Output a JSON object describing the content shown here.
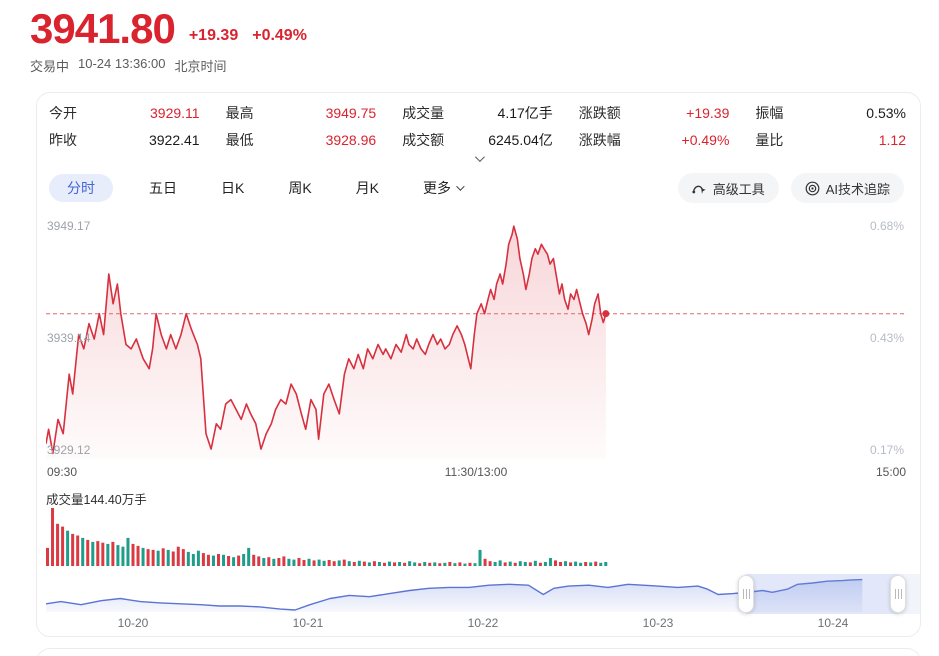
{
  "colors": {
    "up": "#d9232e",
    "down": "#1f9d8b",
    "accent_blue": "#4566d6",
    "line_red": "#d7303f",
    "nav_blue": "#5b74d4"
  },
  "header": {
    "price": "3941.80",
    "change": "+19.39",
    "change_pct": "+0.49%",
    "status": "交易中",
    "datetime": "10-24 13:36:00",
    "timezone": "北京时间"
  },
  "stats": {
    "rows": [
      [
        {
          "label": "今开",
          "value": "3929.11",
          "tone": "up"
        },
        {
          "label": "最高",
          "value": "3949.75",
          "tone": "up"
        },
        {
          "label": "成交量",
          "value": "4.17亿手",
          "tone": "normal"
        },
        {
          "label": "涨跌额",
          "value": "+19.39",
          "tone": "up"
        },
        {
          "label": "振幅",
          "value": "0.53%",
          "tone": "normal"
        }
      ],
      [
        {
          "label": "昨收",
          "value": "3922.41",
          "tone": "normal"
        },
        {
          "label": "最低",
          "value": "3928.96",
          "tone": "up"
        },
        {
          "label": "成交额",
          "value": "6245.04亿",
          "tone": "normal"
        },
        {
          "label": "涨跌幅",
          "value": "+0.49%",
          "tone": "up"
        },
        {
          "label": "量比",
          "value": "1.12",
          "tone": "up"
        }
      ]
    ]
  },
  "tabs": {
    "items": [
      "分时",
      "五日",
      "日K",
      "周K",
      "月K"
    ],
    "active_index": 0,
    "more": "更多"
  },
  "actions": {
    "advanced": "高级工具",
    "ai": "AI技术追踪"
  },
  "chart_data": [
    {
      "type": "line",
      "name": "intraday-price",
      "left_ticks": [
        "3949.17",
        "3939.14",
        "3929.12"
      ],
      "right_ticks": [
        "0.68%",
        "0.43%",
        "0.17%"
      ],
      "xticks": [
        "09:30",
        "11:30/13:00",
        "15:00"
      ],
      "ylim": [
        3928.6,
        3950.4
      ],
      "baseline": 3941.8,
      "session_fraction": 0.651,
      "points": [
        [
          0,
          3930.0
        ],
        [
          0.003,
          3931.3
        ],
        [
          0.008,
          3929.12
        ],
        [
          0.014,
          3932.2
        ],
        [
          0.02,
          3930.9
        ],
        [
          0.027,
          3936.3
        ],
        [
          0.031,
          3934.5
        ],
        [
          0.038,
          3939.9
        ],
        [
          0.044,
          3938.6
        ],
        [
          0.05,
          3940.9
        ],
        [
          0.056,
          3939.5
        ],
        [
          0.062,
          3941.8
        ],
        [
          0.067,
          3939.9
        ],
        [
          0.073,
          3945.4
        ],
        [
          0.078,
          3942.7
        ],
        [
          0.083,
          3944.5
        ],
        [
          0.087,
          3941.8
        ],
        [
          0.093,
          3939.0
        ],
        [
          0.099,
          3938.6
        ],
        [
          0.105,
          3939.5
        ],
        [
          0.113,
          3937.7
        ],
        [
          0.12,
          3936.8
        ],
        [
          0.124,
          3938.6
        ],
        [
          0.128,
          3941.8
        ],
        [
          0.134,
          3939.9
        ],
        [
          0.14,
          3938.6
        ],
        [
          0.145,
          3939.9
        ],
        [
          0.151,
          3938.6
        ],
        [
          0.157,
          3939.9
        ],
        [
          0.163,
          3941.8
        ],
        [
          0.169,
          3940.4
        ],
        [
          0.176,
          3939.0
        ],
        [
          0.18,
          3937.7
        ],
        [
          0.186,
          3930.9
        ],
        [
          0.192,
          3929.5
        ],
        [
          0.198,
          3931.8
        ],
        [
          0.203,
          3931.3
        ],
        [
          0.209,
          3933.6
        ],
        [
          0.215,
          3934.0
        ],
        [
          0.221,
          3933.1
        ],
        [
          0.227,
          3932.2
        ],
        [
          0.233,
          3933.6
        ],
        [
          0.238,
          3932.7
        ],
        [
          0.244,
          3931.8
        ],
        [
          0.25,
          3929.5
        ],
        [
          0.256,
          3930.9
        ],
        [
          0.262,
          3931.8
        ],
        [
          0.267,
          3933.1
        ],
        [
          0.273,
          3934.0
        ],
        [
          0.279,
          3933.6
        ],
        [
          0.285,
          3935.4
        ],
        [
          0.291,
          3934.5
        ],
        [
          0.297,
          3932.7
        ],
        [
          0.302,
          3931.3
        ],
        [
          0.308,
          3934.0
        ],
        [
          0.314,
          3933.1
        ],
        [
          0.317,
          3930.4
        ],
        [
          0.323,
          3934.5
        ],
        [
          0.329,
          3935.4
        ],
        [
          0.335,
          3934.0
        ],
        [
          0.341,
          3932.7
        ],
        [
          0.347,
          3936.3
        ],
        [
          0.352,
          3937.7
        ],
        [
          0.358,
          3936.8
        ],
        [
          0.363,
          3938.1
        ],
        [
          0.369,
          3936.8
        ],
        [
          0.374,
          3938.6
        ],
        [
          0.38,
          3937.7
        ],
        [
          0.386,
          3939.0
        ],
        [
          0.392,
          3938.1
        ],
        [
          0.395,
          3938.6
        ],
        [
          0.401,
          3937.7
        ],
        [
          0.407,
          3939.0
        ],
        [
          0.413,
          3938.3
        ],
        [
          0.419,
          3939.9
        ],
        [
          0.422,
          3939.0
        ],
        [
          0.427,
          3938.6
        ],
        [
          0.431,
          3939.5
        ],
        [
          0.436,
          3938.6
        ],
        [
          0.441,
          3938.1
        ],
        [
          0.445,
          3939.0
        ],
        [
          0.45,
          3939.9
        ],
        [
          0.455,
          3939.0
        ],
        [
          0.459,
          3939.5
        ],
        [
          0.464,
          3938.6
        ],
        [
          0.469,
          3939.0
        ],
        [
          0.473,
          3939.9
        ],
        [
          0.478,
          3940.7
        ],
        [
          0.483,
          3939.9
        ],
        [
          0.487,
          3939.0
        ],
        [
          0.491,
          3937.7
        ],
        [
          0.494,
          3936.8
        ],
        [
          0.498,
          3939.9
        ],
        [
          0.501,
          3941.8
        ],
        [
          0.506,
          3942.7
        ],
        [
          0.51,
          3941.8
        ],
        [
          0.514,
          3943.1
        ],
        [
          0.517,
          3944.0
        ],
        [
          0.521,
          3943.1
        ],
        [
          0.524,
          3944.5
        ],
        [
          0.528,
          3945.4
        ],
        [
          0.531,
          3944.5
        ],
        [
          0.535,
          3946.3
        ],
        [
          0.538,
          3948.1
        ],
        [
          0.542,
          3949.0
        ],
        [
          0.544,
          3949.75
        ],
        [
          0.548,
          3948.6
        ],
        [
          0.551,
          3946.8
        ],
        [
          0.555,
          3945.4
        ],
        [
          0.558,
          3944.0
        ],
        [
          0.562,
          3945.4
        ],
        [
          0.565,
          3946.8
        ],
        [
          0.569,
          3947.7
        ],
        [
          0.572,
          3947.2
        ],
        [
          0.576,
          3948.1
        ],
        [
          0.579,
          3947.7
        ],
        [
          0.583,
          3947.2
        ],
        [
          0.586,
          3946.3
        ],
        [
          0.59,
          3946.8
        ],
        [
          0.593,
          3945.4
        ],
        [
          0.597,
          3943.6
        ],
        [
          0.6,
          3944.5
        ],
        [
          0.603,
          3943.1
        ],
        [
          0.607,
          3942.2
        ],
        [
          0.61,
          3943.6
        ],
        [
          0.614,
          3943.1
        ],
        [
          0.617,
          3944.0
        ],
        [
          0.621,
          3942.7
        ],
        [
          0.624,
          3941.8
        ],
        [
          0.628,
          3940.9
        ],
        [
          0.631,
          3939.9
        ],
        [
          0.635,
          3941.3
        ],
        [
          0.638,
          3942.7
        ],
        [
          0.642,
          3943.6
        ],
        [
          0.645,
          3941.8
        ],
        [
          0.648,
          3941.0
        ],
        [
          0.651,
          3941.8
        ]
      ]
    },
    {
      "type": "bar",
      "name": "volume",
      "label": "成交量144.40万手",
      "unit": "万手",
      "max": 144.4,
      "span_fraction": 0.655,
      "values": [
        45,
        144.4,
        105,
        98,
        88,
        80,
        76,
        70,
        65,
        60,
        62,
        58,
        55,
        60,
        52,
        48,
        70,
        55,
        50,
        45,
        42,
        40,
        38,
        44,
        40,
        36,
        48,
        42,
        35,
        30,
        38,
        32,
        28,
        26,
        30,
        28,
        25,
        22,
        26,
        30,
        45,
        28,
        24,
        20,
        22,
        18,
        20,
        24,
        18,
        16,
        20,
        15,
        18,
        14,
        16,
        13,
        15,
        12,
        14,
        16,
        12,
        10,
        13,
        11,
        9,
        12,
        10,
        8,
        11,
        9,
        10,
        8,
        12,
        9,
        7,
        10,
        8,
        9,
        7,
        8,
        10,
        7,
        9,
        6,
        8,
        7,
        40,
        18,
        12,
        10,
        14,
        9,
        11,
        8,
        12,
        10,
        9,
        13,
        8,
        10,
        20,
        14,
        10,
        12,
        9,
        11,
        8,
        10,
        9,
        11,
        8,
        10
      ],
      "colors": "rrrrgrrgrgrrgrgggrrgrrgrgrrrgggrrgrgrgrggrrgrgrrggrrgrggrrgrgrgrgrgrgrgrggrgrgrgrgrgrggrrggrgrggrgrggrrgrggrgrggg"
    },
    {
      "type": "area",
      "name": "5day-navigator",
      "dates": [
        "10-20",
        "10-21",
        "10-22",
        "10-23",
        "10-24"
      ],
      "window": [
        0.801,
        0.975
      ],
      "points": [
        [
          0,
          0.2
        ],
        [
          0.017,
          0.27
        ],
        [
          0.04,
          0.17
        ],
        [
          0.063,
          0.3
        ],
        [
          0.085,
          0.37
        ],
        [
          0.108,
          0.27
        ],
        [
          0.131,
          0.23
        ],
        [
          0.154,
          0.2
        ],
        [
          0.177,
          0.17
        ],
        [
          0.199,
          0.13
        ],
        [
          0.222,
          0.13
        ],
        [
          0.245,
          0.1
        ],
        [
          0.268,
          0.03
        ],
        [
          0.285,
          0.0
        ],
        [
          0.302,
          0.17
        ],
        [
          0.325,
          0.37
        ],
        [
          0.347,
          0.47
        ],
        [
          0.37,
          0.43
        ],
        [
          0.393,
          0.53
        ],
        [
          0.416,
          0.63
        ],
        [
          0.438,
          0.7
        ],
        [
          0.461,
          0.73
        ],
        [
          0.484,
          0.73
        ],
        [
          0.507,
          0.8
        ],
        [
          0.53,
          0.83
        ],
        [
          0.552,
          0.8
        ],
        [
          0.569,
          0.5
        ],
        [
          0.581,
          0.7
        ],
        [
          0.598,
          0.77
        ],
        [
          0.621,
          0.8
        ],
        [
          0.643,
          0.73
        ],
        [
          0.666,
          0.83
        ],
        [
          0.683,
          0.8
        ],
        [
          0.7,
          0.77
        ],
        [
          0.723,
          0.73
        ],
        [
          0.746,
          0.77
        ],
        [
          0.757,
          0.67
        ],
        [
          0.769,
          0.5
        ],
        [
          0.786,
          0.53
        ],
        [
          0.803,
          0.57
        ],
        [
          0.82,
          0.63
        ],
        [
          0.831,
          0.57
        ],
        [
          0.848,
          0.67
        ],
        [
          0.86,
          0.83
        ],
        [
          0.877,
          0.87
        ],
        [
          0.894,
          0.93
        ],
        [
          0.911,
          0.95
        ],
        [
          0.922,
          0.97
        ],
        [
          0.934,
          0.98
        ]
      ]
    }
  ]
}
